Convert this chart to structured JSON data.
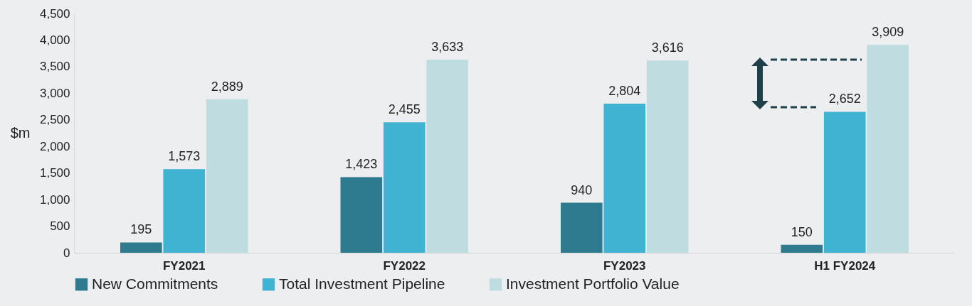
{
  "chart_data": {
    "type": "bar",
    "ylabel": "$m",
    "categories": [
      "FY2021",
      "FY2022",
      "FY2023",
      "H1 FY2024"
    ],
    "series": [
      {
        "name": "New Commitments",
        "color": "#2e7b8f",
        "values": [
          195,
          1423,
          940,
          150
        ],
        "value_labels": [
          "195",
          "1,423",
          "940",
          "150"
        ]
      },
      {
        "name": "Total Investment Pipeline",
        "color": "#40b2d2",
        "values": [
          1573,
          2455,
          2804,
          2652
        ],
        "value_labels": [
          "1,573",
          "2,455",
          "2,804",
          "2,652"
        ]
      },
      {
        "name": "Investment Portfolio Value",
        "color": "#bfdde0",
        "values": [
          2889,
          3633,
          3616,
          3909
        ],
        "value_labels": [
          "2,889",
          "3,633",
          "3,616",
          "3,909"
        ]
      }
    ],
    "ylim": [
      0,
      4500
    ],
    "yticks": [
      {
        "value": 0,
        "label": "0"
      },
      {
        "value": 500,
        "label": "500"
      },
      {
        "value": 1000,
        "label": "1,000"
      },
      {
        "value": 1500,
        "label": "1,500"
      },
      {
        "value": 2000,
        "label": "2,000"
      },
      {
        "value": 2500,
        "label": "2,500"
      },
      {
        "value": 3000,
        "label": "3,000"
      },
      {
        "value": 3500,
        "label": "3,500"
      },
      {
        "value": 4000,
        "label": "4,000"
      },
      {
        "value": 4500,
        "label": "4,500"
      }
    ],
    "data_labels": true,
    "legend": "bottom",
    "grid": false
  }
}
